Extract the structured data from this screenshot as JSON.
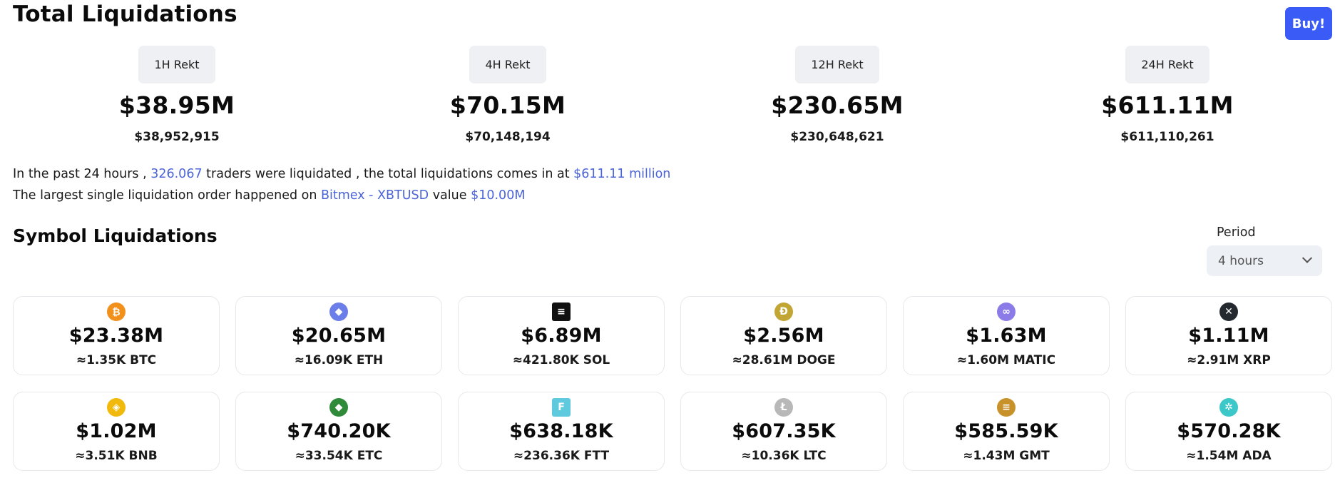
{
  "header": {
    "title": "Total Liquidations",
    "buy_label": "Buy!"
  },
  "rekt": [
    {
      "label": "1H Rekt",
      "short": "$38.95M",
      "full": "$38,952,915"
    },
    {
      "label": "4H Rekt",
      "short": "$70.15M",
      "full": "$70,148,194"
    },
    {
      "label": "12H Rekt",
      "short": "$230.65M",
      "full": "$230,648,621"
    },
    {
      "label": "24H Rekt",
      "short": "$611.11M",
      "full": "$611,110,261"
    }
  ],
  "summary": {
    "l1_a": "In the past 24 hours ,",
    "l1_traders": "326.067",
    "l1_b": "traders were liquidated , the total liquidations comes in at",
    "l1_total": "$611.11 million",
    "l2_a": "The largest single liquidation order happened on",
    "l2_exchange": "Bitmex - XBTUSD",
    "l2_b": "value",
    "l2_value": "$10.00M"
  },
  "symbols": {
    "title": "Symbol Liquidations",
    "period_label": "Period",
    "period_value": "4 hours",
    "cards": [
      {
        "icon": "bitcoin-icon",
        "color": "#f2901c",
        "value": "$23.38M",
        "amount": "≈1.35K BTC"
      },
      {
        "icon": "ethereum-icon",
        "color": "#6b7de8",
        "value": "$20.65M",
        "amount": "≈16.09K ETH"
      },
      {
        "icon": "solana-icon",
        "color": "#111111",
        "value": "$6.89M",
        "amount": "≈421.80K SOL"
      },
      {
        "icon": "dogecoin-icon",
        "color": "#c2a633",
        "value": "$2.56M",
        "amount": "≈28.61M DOGE"
      },
      {
        "icon": "polygon-icon",
        "color": "#8a7be8",
        "value": "$1.63M",
        "amount": "≈1.60M MATIC"
      },
      {
        "icon": "xrp-icon",
        "color": "#23292f",
        "value": "$1.11M",
        "amount": "≈2.91M XRP"
      },
      {
        "icon": "bnb-icon",
        "color": "#f0b90b",
        "value": "$1.02M",
        "amount": "≈3.51K BNB"
      },
      {
        "icon": "ethereum-classic-icon",
        "color": "#2f8a3a",
        "value": "$740.20K",
        "amount": "≈33.54K ETC"
      },
      {
        "icon": "ftx-token-icon",
        "color": "#5fcade",
        "value": "$638.18K",
        "amount": "≈236.36K FTT"
      },
      {
        "icon": "litecoin-icon",
        "color": "#b8b8b8",
        "value": "$607.35K",
        "amount": "≈10.36K LTC"
      },
      {
        "icon": "stepn-gmt-icon",
        "color": "#c8922a",
        "value": "$585.59K",
        "amount": "≈1.43M GMT"
      },
      {
        "icon": "cardano-icon",
        "color": "#3cc8c8",
        "value": "$570.28K",
        "amount": "≈1.54M ADA"
      }
    ]
  }
}
